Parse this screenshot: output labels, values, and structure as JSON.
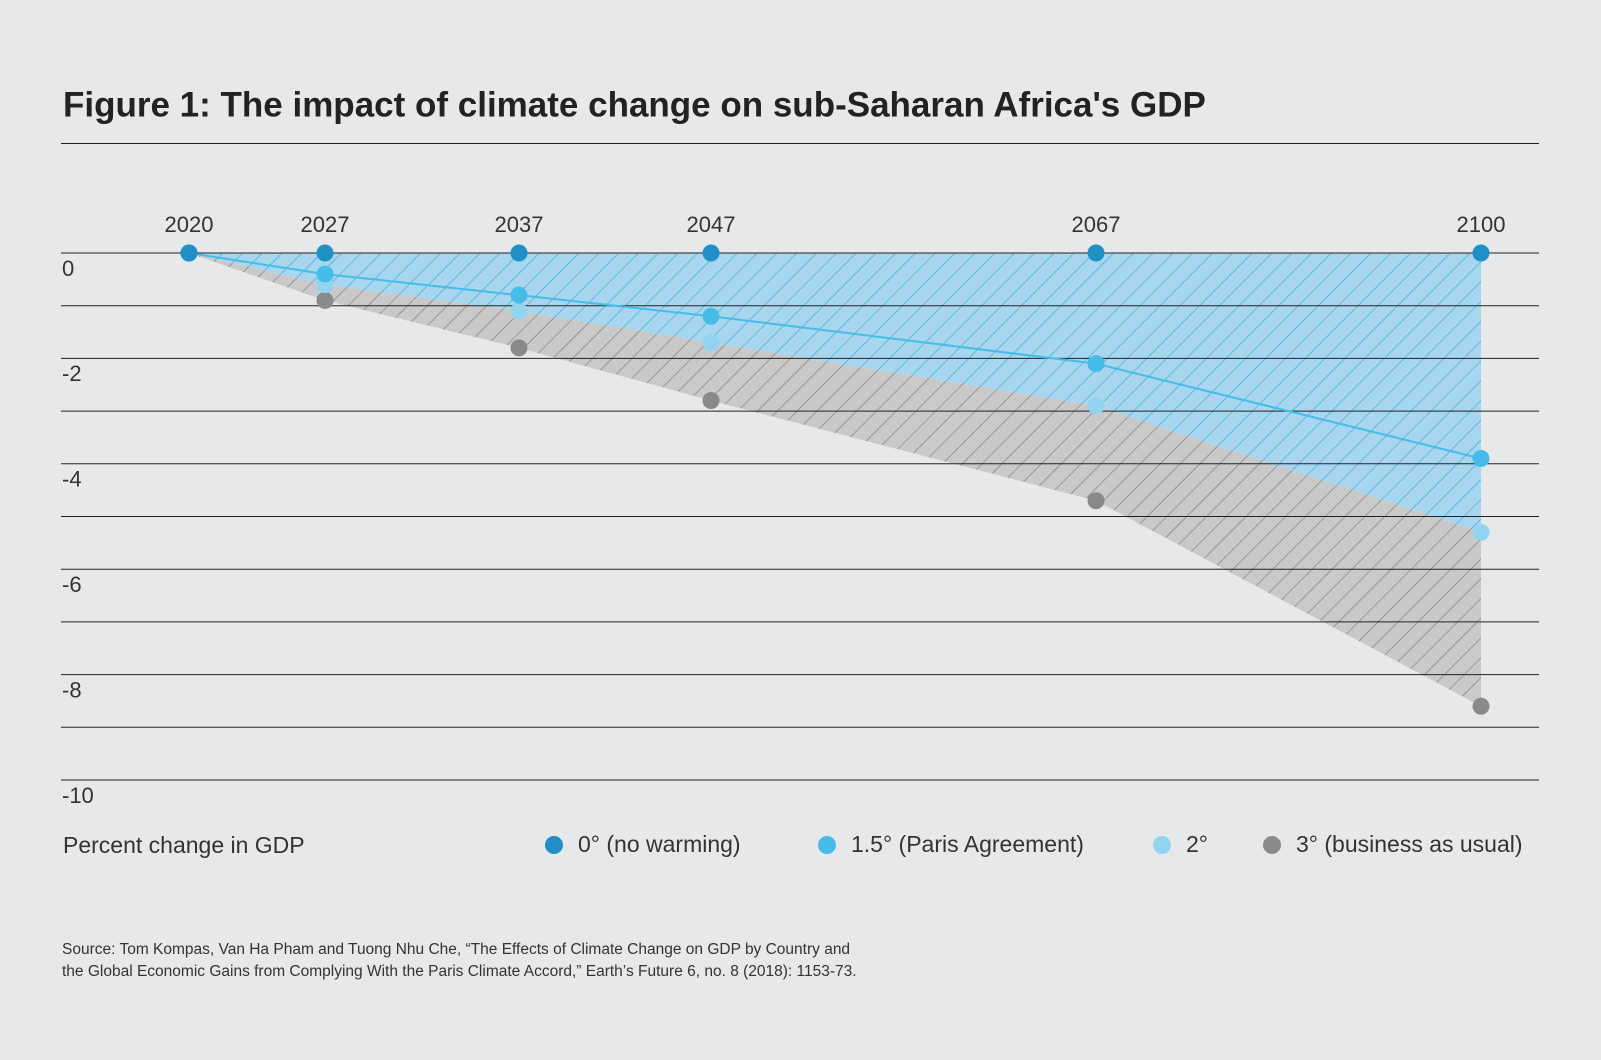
{
  "chart_data": {
    "type": "line-area",
    "title": "Figure 1: The impact of climate change on sub-Saharan Africa's GDP",
    "y_label": "Percent change in GDP",
    "categories": [
      "2020",
      "2027",
      "2037",
      "2047",
      "2067",
      "2100"
    ],
    "series": [
      {
        "name": "0° (no warming)",
        "color": "#1f8fc6",
        "values": [
          0,
          0,
          0,
          0,
          0,
          0
        ]
      },
      {
        "name": "1.5° (Paris Agreement)",
        "color": "#45bde8",
        "values": [
          0,
          -0.4,
          -0.8,
          -1.2,
          -2.1,
          -3.9
        ]
      },
      {
        "name": "2°",
        "color": "#92d4f0",
        "values": [
          0,
          -0.6,
          -1.1,
          -1.7,
          -2.9,
          -5.3
        ]
      },
      {
        "name": "3° (business as usual)",
        "color": "#8a8a8a",
        "values": [
          0,
          -0.9,
          -1.8,
          -2.8,
          -4.7,
          -8.6
        ]
      }
    ],
    "ylim": [
      0,
      -10
    ],
    "yticks": [
      0,
      -2,
      -4,
      -6,
      -8,
      -10
    ],
    "yminorticks": [
      -1,
      -3,
      -5,
      -7,
      -9
    ],
    "grid": true,
    "source": [
      "Source: Tom Kompas, Van Ha Pham and Tuong Nhu Che, “The Effects of Climate Change on GDP by Country and",
      "the Global Economic Gains from Complying With the Paris Climate Accord,” Earth’s Future 6, no. 8 (2018): 1153-73."
    ]
  }
}
